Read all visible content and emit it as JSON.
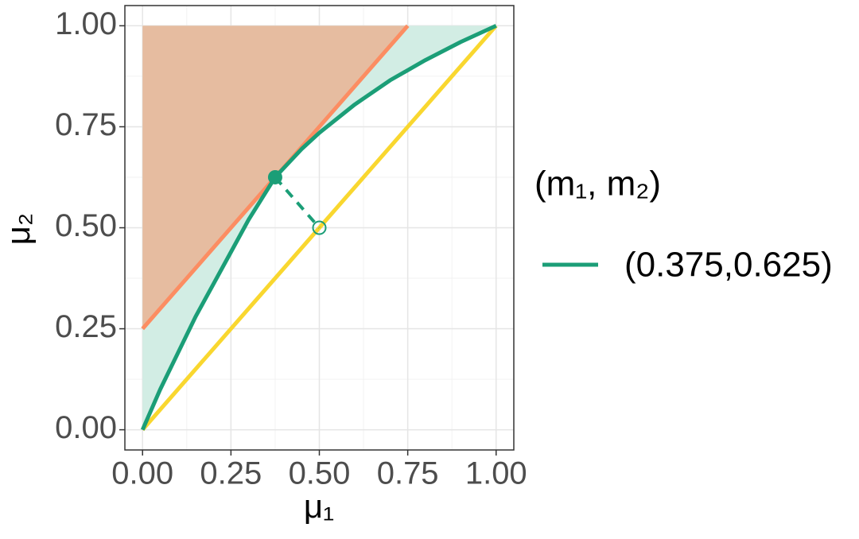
{
  "chart_data": {
    "type": "line",
    "x_label": "μ₁",
    "y_label": "μ₂",
    "xlim": [
      -0.05,
      1.05
    ],
    "ylim": [
      -0.05,
      1.05
    ],
    "xticks": [
      {
        "value": 0,
        "label": "0.00"
      },
      {
        "value": 0.25,
        "label": "0.25"
      },
      {
        "value": 0.5,
        "label": "0.50"
      },
      {
        "value": 0.75,
        "label": "0.75"
      },
      {
        "value": 1,
        "label": "1.00"
      }
    ],
    "yticks": [
      {
        "value": 0,
        "label": "0.00"
      },
      {
        "value": 0.25,
        "label": "0.25"
      },
      {
        "value": 0.5,
        "label": "0.50"
      },
      {
        "value": 0.75,
        "label": "0.75"
      },
      {
        "value": 1,
        "label": "1.00"
      }
    ],
    "minor_ticks": [
      0.125,
      0.375,
      0.625,
      0.875
    ],
    "grid": true,
    "legend_title": "(m₁, m₂)",
    "areas": [
      {
        "color": "#d2ede4",
        "x": [
          0,
          0.05,
          0.1,
          0.15,
          0.2,
          0.25,
          0.3,
          0.375,
          0.45,
          0.5,
          0.6,
          0.7,
          0.8,
          0.9,
          1,
          0
        ],
        "values": [
          0,
          0.1,
          0.19,
          0.28,
          0.36,
          0.44,
          0.52,
          0.625,
          0.695,
          0.735,
          0.805,
          0.865,
          0.915,
          0.96,
          1,
          1
        ]
      },
      {
        "color": "#e6bca0",
        "x": [
          0,
          0,
          0.75
        ],
        "values": [
          0.25,
          1,
          1
        ]
      }
    ],
    "reference_lines": [
      {
        "color": "#fc8d62",
        "x": [
          0,
          0.75
        ],
        "values": [
          0.25,
          1
        ]
      },
      {
        "color": "#f9d72f",
        "x": [
          0,
          1
        ],
        "values": [
          0,
          1
        ]
      }
    ],
    "series": [
      {
        "name": "(0.375,0.625)",
        "color": "#1b9e77",
        "x": [
          0,
          0.05,
          0.1,
          0.15,
          0.2,
          0.25,
          0.3,
          0.375,
          0.45,
          0.5,
          0.6,
          0.7,
          0.8,
          0.9,
          1
        ],
        "values": [
          0,
          0.1,
          0.19,
          0.28,
          0.36,
          0.44,
          0.52,
          0.625,
          0.695,
          0.735,
          0.805,
          0.865,
          0.915,
          0.96,
          1
        ]
      }
    ],
    "points": {
      "color": "#1b9e77",
      "x": [
        0.375,
        0.5
      ],
      "values": [
        0.625,
        0.5
      ]
    }
  }
}
